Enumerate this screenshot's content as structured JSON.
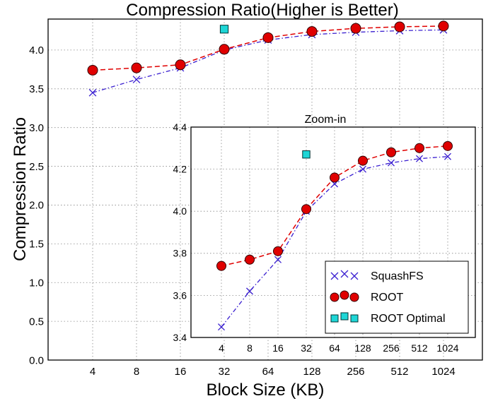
{
  "chart_data": [
    {
      "type": "line",
      "title": "Compression Ratio(Higher is Better)",
      "xlabel": "Block Size (KB)",
      "ylabel": "Compression Ratio",
      "x_scale": "log2",
      "categories": [
        "4",
        "8",
        "16",
        "32",
        "64",
        "128",
        "256",
        "512",
        "1024"
      ],
      "x": [
        4,
        8,
        16,
        32,
        64,
        128,
        256,
        512,
        1024
      ],
      "xlim": [
        2,
        2048
      ],
      "ylim": [
        0,
        4.4
      ],
      "yticks": [
        "0.0",
        "0.5",
        "1.0",
        "1.5",
        "2.0",
        "2.5",
        "3.0",
        "3.5",
        "4.0"
      ],
      "grid": true,
      "series": [
        {
          "name": "SquashFS",
          "color": "#3a1fd0",
          "marker": "x",
          "line": "dash-dot",
          "values": [
            3.45,
            3.62,
            3.77,
            4.0,
            4.13,
            4.2,
            4.23,
            4.25,
            4.26
          ]
        },
        {
          "name": "ROOT",
          "color": "#e00000",
          "marker": "circle",
          "line": "dashed",
          "values": [
            3.74,
            3.77,
            3.81,
            4.01,
            4.16,
            4.24,
            4.28,
            4.3,
            4.31
          ]
        },
        {
          "name": "ROOT Optimal",
          "color": "#1ed6d6",
          "marker": "square",
          "line": "none",
          "points": [
            {
              "x": 32,
              "y": 4.27
            }
          ]
        }
      ]
    },
    {
      "type": "line",
      "title": "Zoom-in",
      "x_scale": "log2",
      "categories": [
        "4",
        "8",
        "16",
        "32",
        "64",
        "128",
        "256",
        "512",
        "1024"
      ],
      "x": [
        4,
        8,
        16,
        32,
        64,
        128,
        256,
        512,
        1024
      ],
      "ylim": [
        3.4,
        4.4
      ],
      "yticks": [
        "3.4",
        "3.6",
        "3.8",
        "4.0",
        "4.2",
        "4.4"
      ],
      "grid": true,
      "legend": "bottom-right",
      "series_ref": "same as main chart"
    }
  ]
}
